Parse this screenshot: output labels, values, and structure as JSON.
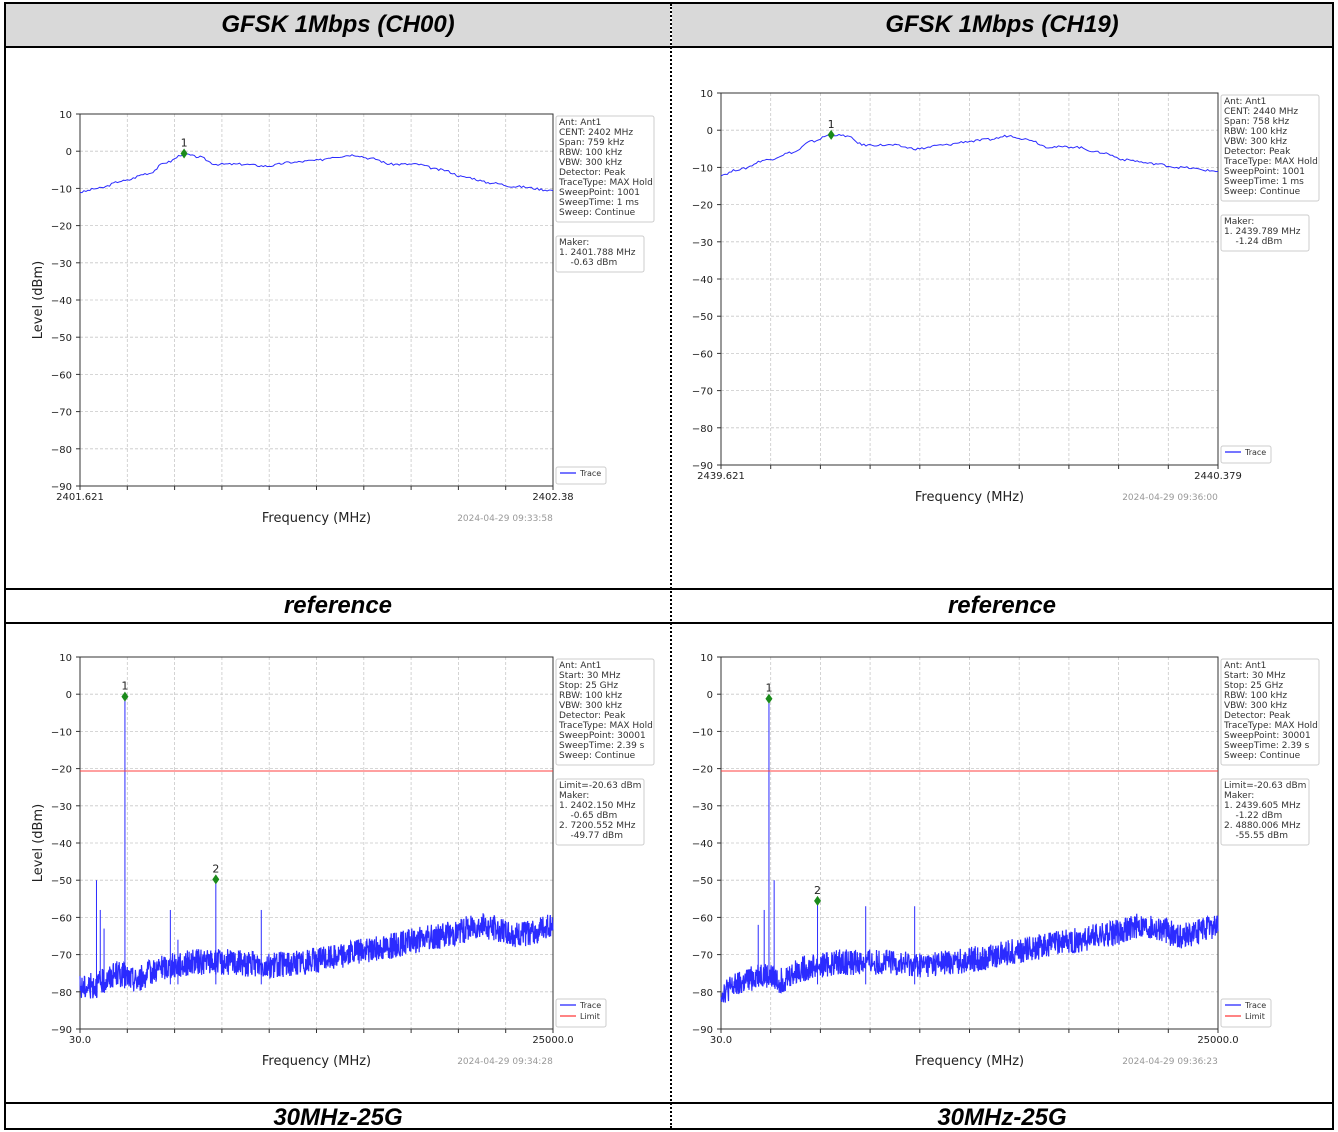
{
  "header": {
    "left": "GFSK 1Mbps (CH00)",
    "right": "GFSK 1Mbps (CH19)"
  },
  "mid_labels": {
    "left": "reference",
    "right": "reference"
  },
  "bottom_labels": {
    "left": "30MHz-25G",
    "right": "30MHz-25G"
  },
  "colors": {
    "trace": "#2b2bff",
    "limit": "#ff4040",
    "marker": "#1a8a1a"
  },
  "chart_data": [
    {
      "type": "line",
      "xlabel": "Frequency (MHz)",
      "ylabel": "Level (dBm)",
      "ylim": [
        -90,
        10
      ],
      "yticks": [
        "10",
        "0",
        "−10",
        "−20",
        "−30",
        "−40",
        "−50",
        "−60",
        "−70",
        "−80",
        "−90"
      ],
      "xtick_labels": [
        "2401.621",
        "2402.38"
      ],
      "x": [
        2401.621,
        2401.65,
        2401.69,
        2401.73,
        2401.76,
        2401.788,
        2401.81,
        2401.84,
        2401.88,
        2401.92,
        2401.96,
        2402.0,
        2402.03,
        2402.06,
        2402.09,
        2402.12,
        2402.16,
        2402.2,
        2402.24,
        2402.28,
        2402.32,
        2402.38
      ],
      "series": [
        {
          "name": "Trace",
          "values": [
            -11,
            -10,
            -8,
            -6,
            -3,
            -0.8,
            -1.5,
            -3.5,
            -3.5,
            -4,
            -3,
            -2.5,
            -1.5,
            -1,
            -2,
            -3.5,
            -3.5,
            -5,
            -7,
            -8.5,
            -9.5,
            -10.5
          ]
        }
      ],
      "info_box": [
        "Ant: Ant1",
        "CENT: 2402 MHz",
        "Span: 759 kHz",
        "RBW: 100 kHz",
        "VBW: 300 kHz",
        "Detector: Peak",
        "TraceType: MAX Hold",
        "SweepPoint: 1001",
        "SweepTime: 1 ms",
        "Sweep: Continue"
      ],
      "marker_box": [
        "Maker:",
        "1. 2401.788 MHz",
        "    -0.63 dBm"
      ],
      "markers": [
        {
          "label": "1",
          "x": 2401.788,
          "y": -0.63
        }
      ],
      "legend": [
        "Trace"
      ],
      "legend_position": "bottom-right",
      "timestamp": "2024-04-29 09:33:58",
      "grid": true
    },
    {
      "type": "line",
      "xlabel": "Frequency (MHz)",
      "ylabel": "Level (dBm)",
      "ylim": [
        -90,
        10
      ],
      "yticks": [
        "10",
        "0",
        "−10",
        "−20",
        "−30",
        "−40",
        "−50",
        "−60",
        "−70",
        "−80",
        "−90"
      ],
      "xtick_labels": [
        "2439.621",
        "2440.379"
      ],
      "x": [
        2439.621,
        2439.65,
        2439.69,
        2439.73,
        2439.76,
        2439.789,
        2439.81,
        2439.84,
        2439.88,
        2439.92,
        2439.96,
        2440.0,
        2440.03,
        2440.06,
        2440.09,
        2440.12,
        2440.16,
        2440.2,
        2440.24,
        2440.28,
        2440.32,
        2440.379
      ],
      "series": [
        {
          "name": "Trace",
          "values": [
            -12,
            -10.5,
            -8,
            -6,
            -3,
            -1.2,
            -1.5,
            -4,
            -4,
            -5,
            -4,
            -3,
            -2.5,
            -1.5,
            -2.5,
            -4.5,
            -4.5,
            -6,
            -8,
            -9,
            -10,
            -11
          ]
        }
      ],
      "info_box": [
        "Ant: Ant1",
        "CENT: 2440 MHz",
        "Span: 758 kHz",
        "RBW: 100 kHz",
        "VBW: 300 kHz",
        "Detector: Peak",
        "TraceType: MAX Hold",
        "SweepPoint: 1001",
        "SweepTime: 1 ms",
        "Sweep: Continue"
      ],
      "marker_box": [
        "Maker:",
        "1. 2439.789 MHz",
        "    -1.24 dBm"
      ],
      "markers": [
        {
          "label": "1",
          "x": 2439.789,
          "y": -1.24
        }
      ],
      "legend": [
        "Trace"
      ],
      "legend_position": "bottom-right",
      "timestamp": "2024-04-29 09:36:00",
      "grid": true
    },
    {
      "type": "line",
      "xlabel": "Frequency (MHz)",
      "ylabel": "Level (dBm)",
      "ylim": [
        -90,
        10
      ],
      "yticks": [
        "10",
        "0",
        "−10",
        "−20",
        "−30",
        "−40",
        "−50",
        "−60",
        "−70",
        "−80",
        "−90"
      ],
      "xtick_labels": [
        "30.0",
        "25000.0"
      ],
      "xlim": [
        30,
        25000
      ],
      "floor": {
        "x": [
          30,
          1000,
          2000,
          3000,
          4000,
          5000,
          6000,
          8000,
          10000,
          12000,
          14000,
          16000,
          18000,
          20000,
          21000,
          22000,
          23000,
          24000,
          25000
        ],
        "y": [
          -79,
          -78,
          -75,
          -77,
          -74,
          -73,
          -72,
          -72,
          -73,
          -72,
          -70,
          -68,
          -66,
          -64,
          -62,
          -63,
          -65,
          -64,
          -62
        ]
      },
      "spikes": [
        {
          "x": 900,
          "y": -50
        },
        {
          "x": 1100,
          "y": -58
        },
        {
          "x": 1300,
          "y": -63
        },
        {
          "x": 2402.15,
          "y": -0.65
        },
        {
          "x": 4800,
          "y": -58
        },
        {
          "x": 5200,
          "y": -66
        },
        {
          "x": 7200.552,
          "y": -49.77
        },
        {
          "x": 9600,
          "y": -58
        }
      ],
      "limit": -20.63,
      "info_box": [
        "Ant: Ant1",
        "Start: 30 MHz",
        "Stop: 25 GHz",
        "RBW: 100 kHz",
        "VBW: 300 kHz",
        "Detector: Peak",
        "TraceType: MAX Hold",
        "SweepPoint: 30001",
        "SweepTime: 2.39 s",
        "Sweep: Continue"
      ],
      "marker_box": [
        "Limit=-20.63 dBm",
        "Maker:",
        "1. 2402.150 MHz",
        "    -0.65 dBm",
        "2. 7200.552 MHz",
        "    -49.77 dBm"
      ],
      "markers": [
        {
          "label": "1",
          "x": 2402.15,
          "y": -0.65
        },
        {
          "label": "2",
          "x": 7200.552,
          "y": -49.77
        }
      ],
      "legend": [
        "Trace",
        "Limit"
      ],
      "legend_position": "bottom-right",
      "timestamp": "2024-04-29 09:34:28",
      "grid": true
    },
    {
      "type": "line",
      "xlabel": "Frequency (MHz)",
      "ylabel": "Level (dBm)",
      "ylim": [
        -90,
        10
      ],
      "yticks": [
        "10",
        "0",
        "−10",
        "−20",
        "−30",
        "−40",
        "−50",
        "−60",
        "−70",
        "−80",
        "−90"
      ],
      "xtick_labels": [
        "30.0",
        "25000.0"
      ],
      "xlim": [
        30,
        25000
      ],
      "floor": {
        "x": [
          30,
          1000,
          2000,
          3000,
          4000,
          5000,
          6000,
          8000,
          10000,
          12000,
          14000,
          16000,
          18000,
          20000,
          21000,
          22000,
          23000,
          24000,
          25000
        ],
        "y": [
          -80,
          -78,
          -75,
          -77,
          -74,
          -73,
          -72,
          -72,
          -73,
          -72,
          -70,
          -68,
          -66,
          -64,
          -62,
          -63,
          -65,
          -64,
          -62
        ]
      },
      "spikes": [
        {
          "x": 1900,
          "y": -62
        },
        {
          "x": 2200,
          "y": -58
        },
        {
          "x": 2439.605,
          "y": -1.22
        },
        {
          "x": 2700,
          "y": -50
        },
        {
          "x": 4880.006,
          "y": -55.55
        },
        {
          "x": 7300,
          "y": -57
        },
        {
          "x": 9760,
          "y": -57
        }
      ],
      "limit": -20.63,
      "info_box": [
        "Ant: Ant1",
        "Start: 30 MHz",
        "Stop: 25 GHz",
        "RBW: 100 kHz",
        "VBW: 300 kHz",
        "Detector: Peak",
        "TraceType: MAX Hold",
        "SweepPoint: 30001",
        "SweepTime: 2.39 s",
        "Sweep: Continue"
      ],
      "marker_box": [
        "Limit=-20.63 dBm",
        "Maker:",
        "1. 2439.605 MHz",
        "    -1.22 dBm",
        "2. 4880.006 MHz",
        "    -55.55 dBm"
      ],
      "markers": [
        {
          "label": "1",
          "x": 2439.605,
          "y": -1.22
        },
        {
          "label": "2",
          "x": 4880.006,
          "y": -55.55
        }
      ],
      "legend": [
        "Trace",
        "Limit"
      ],
      "legend_position": "bottom-right",
      "timestamp": "2024-04-29 09:36:23",
      "grid": true
    }
  ]
}
